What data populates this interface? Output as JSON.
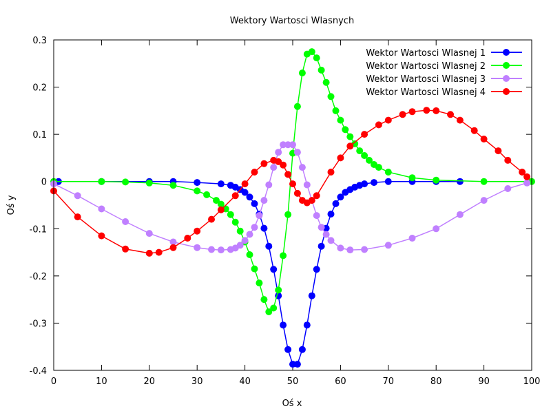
{
  "chart_data": {
    "type": "line",
    "title": "Wektory Wartosci Wlasnych",
    "xlabel": "Oś x",
    "ylabel": "Oś y",
    "xlim": [
      0,
      100
    ],
    "ylim": [
      -0.4,
      0.3
    ],
    "xticks": [
      0,
      10,
      20,
      30,
      40,
      50,
      60,
      70,
      80,
      90,
      100
    ],
    "yticks": [
      0.3,
      0.2,
      0.1,
      0,
      -0.1,
      -0.2,
      -0.3,
      -0.4
    ],
    "ytick_labels": [
      "0.3",
      "0.2",
      "0.1",
      "0",
      "-0.1",
      "-0.2",
      "-0.3",
      "-0.4"
    ],
    "grid": false,
    "legend_position": "top-right",
    "series": [
      {
        "name": "Wektor Wartosci Wlasnej 1",
        "color": "#0000ff",
        "x": [
          1,
          10,
          20,
          25,
          30,
          35,
          37,
          38,
          39,
          40,
          41,
          42,
          43,
          44,
          45,
          46,
          47,
          48,
          49,
          50,
          51,
          52,
          53,
          54,
          55,
          56,
          57,
          58,
          59,
          60,
          61,
          62,
          63,
          64,
          65,
          67,
          70,
          75,
          80,
          85
        ],
        "y": [
          0,
          0,
          0,
          0,
          -0.002,
          -0.005,
          -0.008,
          -0.012,
          -0.017,
          -0.023,
          -0.033,
          -0.047,
          -0.069,
          -0.099,
          -0.137,
          -0.186,
          -0.242,
          -0.304,
          -0.356,
          -0.387,
          -0.387,
          -0.356,
          -0.304,
          -0.242,
          -0.186,
          -0.137,
          -0.099,
          -0.069,
          -0.047,
          -0.033,
          -0.023,
          -0.017,
          -0.012,
          -0.008,
          -0.005,
          -0.002,
          0,
          0,
          0,
          0
        ]
      },
      {
        "name": "Wektor Wartosci Wlasnej 2",
        "color": "#00ff00",
        "x": [
          0,
          10,
          15,
          20,
          25,
          30,
          32,
          34,
          35,
          36,
          37,
          38,
          39,
          40,
          41,
          42,
          43,
          44,
          45,
          46,
          47,
          48,
          49,
          50,
          51,
          52,
          53,
          54,
          55,
          56,
          57,
          58,
          59,
          60,
          61,
          62,
          63,
          64,
          65,
          66,
          67,
          68,
          70,
          75,
          80,
          90,
          100
        ],
        "y": [
          0,
          0,
          -0.001,
          -0.003,
          -0.008,
          -0.02,
          -0.028,
          -0.04,
          -0.048,
          -0.058,
          -0.07,
          -0.086,
          -0.105,
          -0.128,
          -0.155,
          -0.185,
          -0.215,
          -0.25,
          -0.276,
          -0.268,
          -0.23,
          -0.157,
          -0.07,
          0.06,
          0.159,
          0.23,
          0.27,
          0.275,
          0.262,
          0.236,
          0.21,
          0.18,
          0.15,
          0.13,
          0.11,
          0.095,
          0.08,
          0.065,
          0.055,
          0.045,
          0.036,
          0.03,
          0.02,
          0.008,
          0.003,
          0,
          0
        ]
      },
      {
        "name": "Wektor Wartosci Wlasnej 3",
        "color": "#c080ff",
        "x": [
          0,
          5,
          10,
          15,
          20,
          25,
          30,
          33,
          35,
          37,
          38,
          39,
          40,
          41,
          42,
          43,
          44,
          45,
          46,
          47,
          48,
          49,
          50,
          51,
          52,
          53,
          54,
          55,
          56,
          57,
          58,
          60,
          62,
          65,
          70,
          75,
          80,
          85,
          90,
          95,
          99
        ],
        "y": [
          -0.005,
          -0.03,
          -0.058,
          -0.085,
          -0.11,
          -0.128,
          -0.14,
          -0.144,
          -0.145,
          -0.144,
          -0.141,
          -0.135,
          -0.125,
          -0.112,
          -0.097,
          -0.072,
          -0.04,
          -0.007,
          0.03,
          0.062,
          0.078,
          0.078,
          0.078,
          0.062,
          0.03,
          -0.007,
          -0.04,
          -0.072,
          -0.097,
          -0.112,
          -0.125,
          -0.141,
          -0.145,
          -0.144,
          -0.135,
          -0.12,
          -0.1,
          -0.07,
          -0.04,
          -0.015,
          -0.003
        ]
      },
      {
        "name": "Wektor Wartosci Wlasnej 4",
        "color": "#ff0000",
        "x": [
          0,
          5,
          10,
          15,
          20,
          22,
          25,
          28,
          30,
          33,
          35,
          38,
          40,
          42,
          44,
          46,
          47,
          48,
          49,
          50,
          51,
          52,
          53,
          54,
          55,
          58,
          60,
          62,
          65,
          68,
          70,
          73,
          75,
          78,
          80,
          83,
          85,
          88,
          90,
          93,
          95,
          98,
          99
        ],
        "y": [
          -0.02,
          -0.075,
          -0.115,
          -0.143,
          -0.152,
          -0.15,
          -0.14,
          -0.12,
          -0.105,
          -0.08,
          -0.06,
          -0.03,
          -0.005,
          0.02,
          0.038,
          0.045,
          0.042,
          0.035,
          0.015,
          -0.005,
          -0.025,
          -0.04,
          -0.045,
          -0.04,
          -0.03,
          0.02,
          0.05,
          0.075,
          0.1,
          0.12,
          0.13,
          0.142,
          0.148,
          0.151,
          0.15,
          0.142,
          0.13,
          0.108,
          0.09,
          0.065,
          0.045,
          0.02,
          0.01
        ]
      }
    ]
  }
}
